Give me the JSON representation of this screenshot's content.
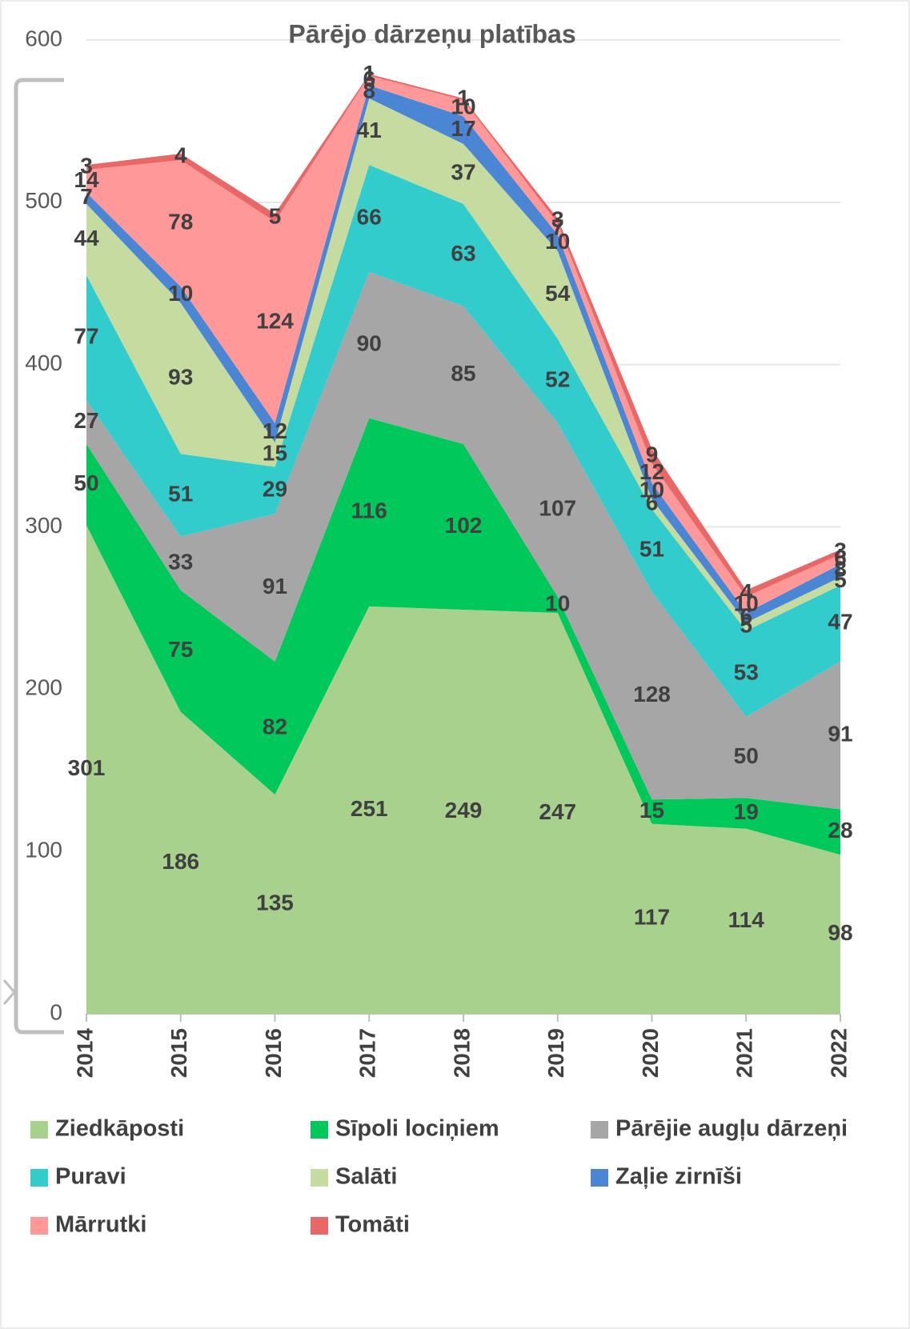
{
  "chart_data": {
    "type": "stacked_area",
    "title": "Pārējo dārzeņu platības",
    "categories": [
      "2014",
      "2015",
      "2016",
      "2017",
      "2018",
      "2019",
      "2020",
      "2021",
      "2022"
    ],
    "ylim": [
      0,
      600
    ],
    "yticks": [
      0,
      100,
      200,
      300,
      400,
      500,
      600
    ],
    "grid": true,
    "series": [
      {
        "name": "Ziedkāposti",
        "color": "#a9d18e",
        "values": [
          301,
          186,
          135,
          251,
          249,
          247,
          117,
          114,
          98
        ]
      },
      {
        "name": "Sīpoli lociņiem",
        "color": "#00c85a",
        "values": [
          50,
          75,
          82,
          116,
          102,
          10,
          15,
          19,
          28
        ]
      },
      {
        "name": "Pārējie augļu dārzeņi",
        "color": "#a6a6a6",
        "values": [
          27,
          33,
          91,
          90,
          85,
          107,
          128,
          50,
          91
        ]
      },
      {
        "name": "Puravi",
        "color": "#33cccc",
        "values": [
          77,
          51,
          29,
          66,
          63,
          52,
          51,
          53,
          47
        ]
      },
      {
        "name": "Salāti",
        "color": "#c5dba0",
        "values": [
          44,
          93,
          15,
          41,
          37,
          54,
          6,
          5,
          5
        ]
      },
      {
        "name": "Zaļie zirnīši",
        "color": "#4a86d4",
        "values": [
          7,
          10,
          12,
          8,
          17,
          10,
          10,
          6,
          8
        ]
      },
      {
        "name": "Mārrutki",
        "color": "#ff9999",
        "values": [
          14,
          78,
          124,
          6,
          10,
          7,
          12,
          10,
          6
        ]
      },
      {
        "name": "Tomāti",
        "color": "#e86868",
        "values": [
          3,
          4,
          5,
          1,
          1,
          3,
          9,
          4,
          3
        ]
      }
    ]
  }
}
